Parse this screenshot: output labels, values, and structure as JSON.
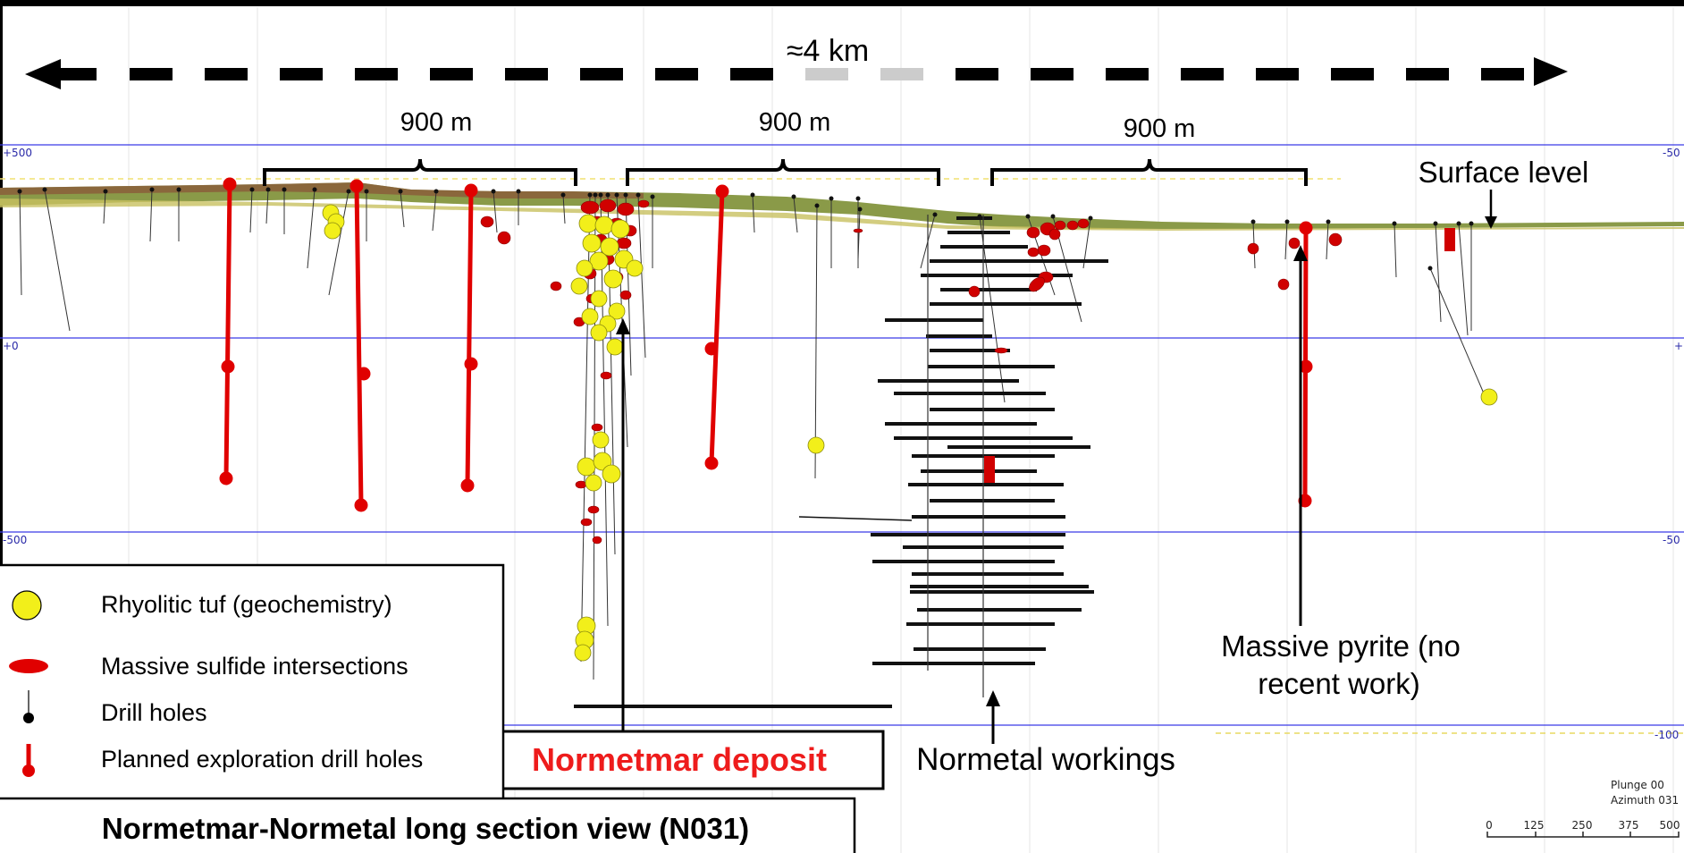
{
  "scale_bar_top": {
    "label": "≈4 km"
  },
  "spans": [
    {
      "label": "900 m"
    },
    {
      "label": "900 m"
    },
    {
      "label": "900 m"
    }
  ],
  "elevation_labels": {
    "left": [
      "+500",
      "+0",
      "-500"
    ],
    "right": [
      "-50",
      "+",
      "-50",
      "-100"
    ]
  },
  "annotations": {
    "surface_level": "Surface level",
    "massive_pyrite_line1": "Massive pyrite (no",
    "massive_pyrite_line2": "recent work)",
    "normetal_workings": "Normetal workings",
    "normetmar_deposit": "Normetmar deposit"
  },
  "legend": {
    "items": [
      {
        "label": "Rhyolitic tuf (geochemistry)",
        "icon": "yellow-circle-icon"
      },
      {
        "label": "Massive sulfide intersections",
        "icon": "red-ellipse-icon"
      },
      {
        "label": "Drill holes",
        "icon": "drill-hole-icon"
      },
      {
        "label": "Planned exploration drill holes",
        "icon": "planned-drill-hole-icon"
      }
    ]
  },
  "title": "Normetmar-Normetal long section view (N031)",
  "orientation": {
    "plunge": "Plunge 00",
    "azimuth": "Azimuth 031"
  },
  "scale_bar_bottom": {
    "ticks": [
      "0",
      "125",
      "250",
      "375",
      "500"
    ]
  },
  "colors": {
    "planned_holes": "#e00000",
    "sulfide": "#d40000",
    "tuff": "#f2ef1a",
    "elevation_lines": "#3030e0",
    "surface": "#6e8a3a"
  }
}
